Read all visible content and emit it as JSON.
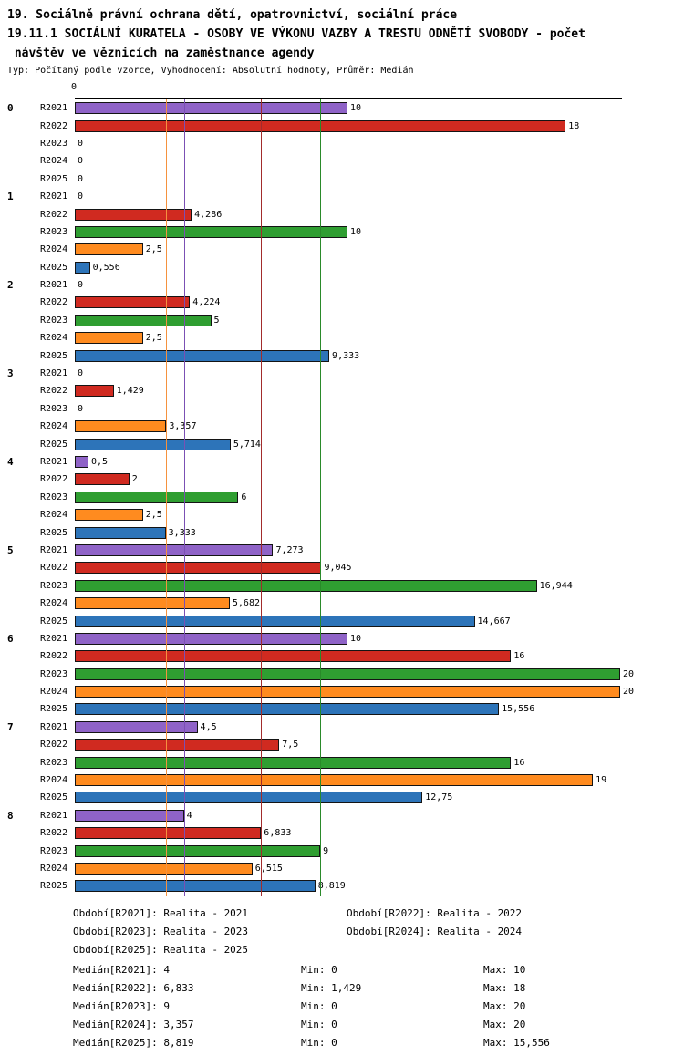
{
  "title": {
    "line1": "19. Sociálně právní ochrana dětí, opatrovnictví, sociální práce",
    "line2": "19.11.1 SOCIÁLNÍ KURATELA - OSOBY VE VÝKONU VAZBY A TRESTU ODNĚTÍ SVOBODY - počet",
    "line3": " návštěv ve věznicích na zaměstnance agendy",
    "meta": "Typ: Počítaný podle vzorce, Vyhodnocení: Absolutní hodnoty, Průměr: Medián"
  },
  "chart_data": {
    "type": "bar",
    "orientation": "horizontal",
    "title": "19.11.1 SOCIÁLNÍ KURATELA - OSOBY VE VÝKONU VAZBY A TRESTU ODNĚTÍ SVOBODY - počet návštěv ve věznicích na zaměstnance agendy",
    "axis_origin_label": "0",
    "xlim": [
      0,
      20
    ],
    "grid": false,
    "value_decimal_separator": ",",
    "categories": [
      "0",
      "1",
      "2",
      "3",
      "4",
      "5",
      "6",
      "7",
      "8"
    ],
    "series_names": [
      "R2021",
      "R2022",
      "R2023",
      "R2024",
      "R2025"
    ],
    "series_colors": {
      "R2021": "#8f63c7",
      "R2022": "#d02a20",
      "R2023": "#2f9e31",
      "R2024": "#ff8b1f",
      "R2025": "#2d74b9"
    },
    "groups": [
      {
        "category": "0",
        "bars": [
          {
            "series": "R2021",
            "value": 10,
            "label": "10"
          },
          {
            "series": "R2022",
            "value": 18,
            "label": "18"
          },
          {
            "series": "R2023",
            "value": 0,
            "label": "0"
          },
          {
            "series": "R2024",
            "value": 0,
            "label": "0"
          },
          {
            "series": "R2025",
            "value": 0,
            "label": "0"
          }
        ]
      },
      {
        "category": "1",
        "bars": [
          {
            "series": "R2021",
            "value": 0,
            "label": "0"
          },
          {
            "series": "R2022",
            "value": 4.286,
            "label": "4,286"
          },
          {
            "series": "R2023",
            "value": 10,
            "label": "10"
          },
          {
            "series": "R2024",
            "value": 2.5,
            "label": "2,5"
          },
          {
            "series": "R2025",
            "value": 0.556,
            "label": "0,556"
          }
        ]
      },
      {
        "category": "2",
        "bars": [
          {
            "series": "R2021",
            "value": 0,
            "label": "0"
          },
          {
            "series": "R2022",
            "value": 4.224,
            "label": "4,224"
          },
          {
            "series": "R2023",
            "value": 5,
            "label": "5"
          },
          {
            "series": "R2024",
            "value": 2.5,
            "label": "2,5"
          },
          {
            "series": "R2025",
            "value": 9.333,
            "label": "9,333"
          }
        ]
      },
      {
        "category": "3",
        "bars": [
          {
            "series": "R2021",
            "value": 0,
            "label": "0"
          },
          {
            "series": "R2022",
            "value": 1.429,
            "label": "1,429"
          },
          {
            "series": "R2023",
            "value": 0,
            "label": "0"
          },
          {
            "series": "R2024",
            "value": 3.357,
            "label": "3,357"
          },
          {
            "series": "R2025",
            "value": 5.714,
            "label": "5,714"
          }
        ]
      },
      {
        "category": "4",
        "bars": [
          {
            "series": "R2021",
            "value": 0.5,
            "label": "0,5"
          },
          {
            "series": "R2022",
            "value": 2,
            "label": "2"
          },
          {
            "series": "R2023",
            "value": 6,
            "label": "6"
          },
          {
            "series": "R2024",
            "value": 2.5,
            "label": "2,5"
          },
          {
            "series": "R2025",
            "value": 3.333,
            "label": "3,333"
          }
        ]
      },
      {
        "category": "5",
        "bars": [
          {
            "series": "R2021",
            "value": 7.273,
            "label": "7,273"
          },
          {
            "series": "R2022",
            "value": 9.045,
            "label": "9,045"
          },
          {
            "series": "R2023",
            "value": 16.944,
            "label": "16,944"
          },
          {
            "series": "R2024",
            "value": 5.682,
            "label": "5,682"
          },
          {
            "series": "R2025",
            "value": 14.667,
            "label": "14,667"
          }
        ]
      },
      {
        "category": "6",
        "bars": [
          {
            "series": "R2021",
            "value": 10,
            "label": "10"
          },
          {
            "series": "R2022",
            "value": 16,
            "label": "16"
          },
          {
            "series": "R2023",
            "value": 20,
            "label": "20"
          },
          {
            "series": "R2024",
            "value": 20,
            "label": "20"
          },
          {
            "series": "R2025",
            "value": 15.556,
            "label": "15,556"
          }
        ]
      },
      {
        "category": "7",
        "bars": [
          {
            "series": "R2021",
            "value": 4.5,
            "label": "4,5"
          },
          {
            "series": "R2022",
            "value": 7.5,
            "label": "7,5"
          },
          {
            "series": "R2023",
            "value": 16,
            "label": "16"
          },
          {
            "series": "R2024",
            "value": 19,
            "label": "19"
          },
          {
            "series": "R2025",
            "value": 12.75,
            "label": "12,75"
          }
        ]
      },
      {
        "category": "8",
        "bars": [
          {
            "series": "R2021",
            "value": 4,
            "label": "4"
          },
          {
            "series": "R2022",
            "value": 6.833,
            "label": "6,833"
          },
          {
            "series": "R2023",
            "value": 9,
            "label": "9"
          },
          {
            "series": "R2024",
            "value": 6.515,
            "label": "6,515"
          },
          {
            "series": "R2025",
            "value": 8.819,
            "label": "8,819"
          }
        ]
      }
    ],
    "medians": [
      {
        "series": "R2021",
        "value": 4,
        "color": "#7b50b4"
      },
      {
        "series": "R2022",
        "value": 6.833,
        "color": "#a22c2c"
      },
      {
        "series": "R2023",
        "value": 9,
        "color": "#2a8a2a"
      },
      {
        "series": "R2024",
        "value": 3.357,
        "color": "#f5923e"
      },
      {
        "series": "R2025",
        "value": 8.819,
        "color": "#2b7aa8"
      }
    ]
  },
  "legend": {
    "items": [
      "Období[R2021]: Realita - 2021",
      "Období[R2022]: Realita - 2022",
      "Období[R2023]: Realita - 2023",
      "Období[R2024]: Realita - 2024",
      "Období[R2025]: Realita - 2025"
    ]
  },
  "stats": {
    "rows": [
      {
        "median": "Medián[R2021]: 4",
        "min": "Min: 0",
        "max": "Max: 10"
      },
      {
        "median": "Medián[R2022]: 6,833",
        "min": "Min: 1,429",
        "max": "Max: 18"
      },
      {
        "median": "Medián[R2023]: 9",
        "min": "Min: 0",
        "max": "Max: 20"
      },
      {
        "median": "Medián[R2024]: 3,357",
        "min": "Min: 0",
        "max": "Max: 20"
      },
      {
        "median": "Medián[R2025]: 8,819",
        "min": "Min: 0",
        "max": "Max: 15,556"
      }
    ]
  }
}
